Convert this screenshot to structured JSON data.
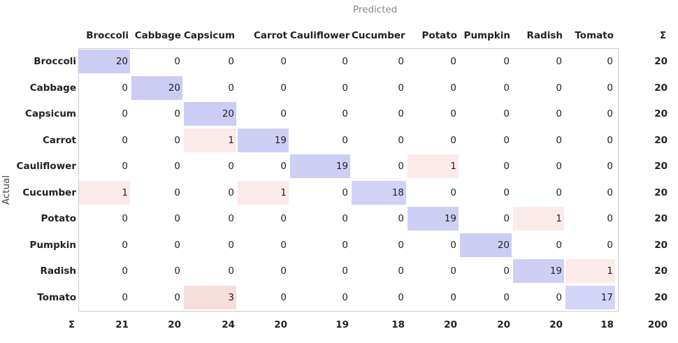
{
  "predicted_label": "Predicted",
  "actual_label": "Actual",
  "sum_symbol": "Σ",
  "columns": [
    "Broccoli",
    "Cabbage",
    "Capsicum",
    "Carrot",
    "Cauliflower",
    "Cucumber",
    "Potato",
    "Pumpkin",
    "Radish",
    "Tomato"
  ],
  "rows": [
    "Broccoli",
    "Cabbage",
    "Capsicum",
    "Carrot",
    "Cauliflower",
    "Cucumber",
    "Potato",
    "Pumpkin",
    "Radish",
    "Tomato"
  ],
  "matrix": [
    [
      20,
      0,
      0,
      0,
      0,
      0,
      0,
      0,
      0,
      0
    ],
    [
      0,
      20,
      0,
      0,
      0,
      0,
      0,
      0,
      0,
      0
    ],
    [
      0,
      0,
      20,
      0,
      0,
      0,
      0,
      0,
      0,
      0
    ],
    [
      0,
      0,
      1,
      19,
      0,
      0,
      0,
      0,
      0,
      0
    ],
    [
      0,
      0,
      0,
      0,
      19,
      0,
      1,
      0,
      0,
      0
    ],
    [
      1,
      0,
      0,
      1,
      0,
      18,
      0,
      0,
      0,
      0
    ],
    [
      0,
      0,
      0,
      0,
      0,
      0,
      19,
      0,
      1,
      0
    ],
    [
      0,
      0,
      0,
      0,
      0,
      0,
      0,
      20,
      0,
      0
    ],
    [
      0,
      0,
      0,
      0,
      0,
      0,
      0,
      0,
      19,
      1
    ],
    [
      0,
      0,
      3,
      0,
      0,
      0,
      0,
      0,
      0,
      17
    ]
  ],
  "row_sums": [
    20,
    20,
    20,
    20,
    20,
    20,
    20,
    20,
    20,
    20
  ],
  "col_sums": [
    21,
    20,
    24,
    20,
    19,
    18,
    20,
    20,
    20,
    18
  ],
  "total": 200
}
